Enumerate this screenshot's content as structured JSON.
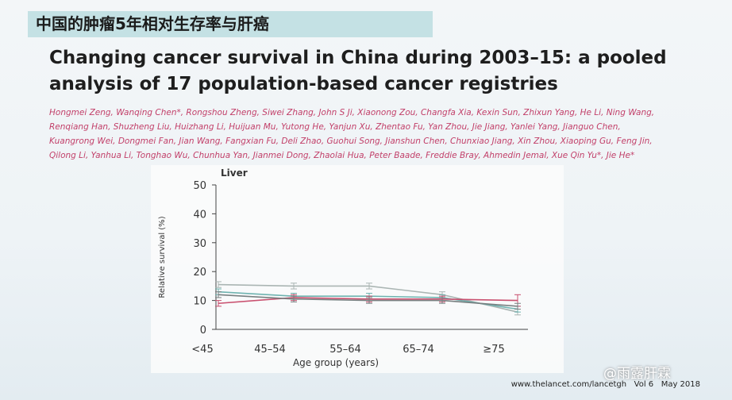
{
  "header": {
    "title": "中国的肿瘤5年相对生存率与肝癌"
  },
  "paper": {
    "title_lines": [
      "Changing cancer survival in China during 2003–15: a pooled",
      "analysis of 17 population-based cancer registries"
    ],
    "author_lines": [
      "Hongmei Zeng, Wanqing Chen*, Rongshou Zheng, Siwei Zhang, John S Ji, Xiaonong Zou, Changfa Xia, Kexin Sun, Zhixun Yang, He Li, Ning Wang,",
      "Renqiang Han, Shuzheng Liu, Huizhang Li, Huijuan Mu, Yutong He, Yanjun Xu, Zhentao Fu, Yan Zhou, Jie Jiang, Yanlei Yang, Jianguo Chen,",
      "Kuangrong Wei, Dongmei Fan, Jian Wang, Fangxian Fu, Deli Zhao, Guohui Song, Jianshun Chen, Chunxiao Jiang, Xin Zhou, Xiaoping Gu, Feng Jin,",
      "Qilong Li, Yanhua Li, Tonghao Wu, Chunhua Yan, Jianmei Dong, Zhaolai Hua, Peter Baade, Freddie Bray, Ahmedin Jemal, Xue Qin Yu*, Jie He*"
    ]
  },
  "chart_data": {
    "type": "line",
    "title": "Liver",
    "x_label": "Age group (years)",
    "y_label": "Relative survival (%)",
    "categories": [
      "<45",
      "45–54",
      "55–64",
      "65–74",
      "≥75"
    ],
    "series": [
      {
        "color": "#aab5b3",
        "values": [
          15.5,
          15,
          15,
          12,
          6
        ],
        "errors": [
          1,
          1,
          1,
          1,
          1
        ]
      },
      {
        "color": "#6fb3b0",
        "values": [
          13,
          11.5,
          11.5,
          11,
          7
        ],
        "errors": [
          1,
          1,
          1,
          1,
          1
        ]
      },
      {
        "color": "#c9506f",
        "values": [
          9,
          11,
          10.5,
          10.5,
          10
        ],
        "errors": [
          1,
          1,
          1,
          1,
          2
        ]
      },
      {
        "color": "#777f80",
        "values": [
          12,
          10.5,
          10,
          10,
          8
        ],
        "errors": [
          1,
          1,
          1,
          1,
          1
        ]
      }
    ],
    "ylim": [
      0,
      50
    ],
    "yticks": [
      0,
      10,
      20,
      30,
      40,
      50
    ]
  },
  "footer": "www.thelancet.com/lancetgh   Vol 6   May 2018",
  "watermark": "@雨露肝霖"
}
